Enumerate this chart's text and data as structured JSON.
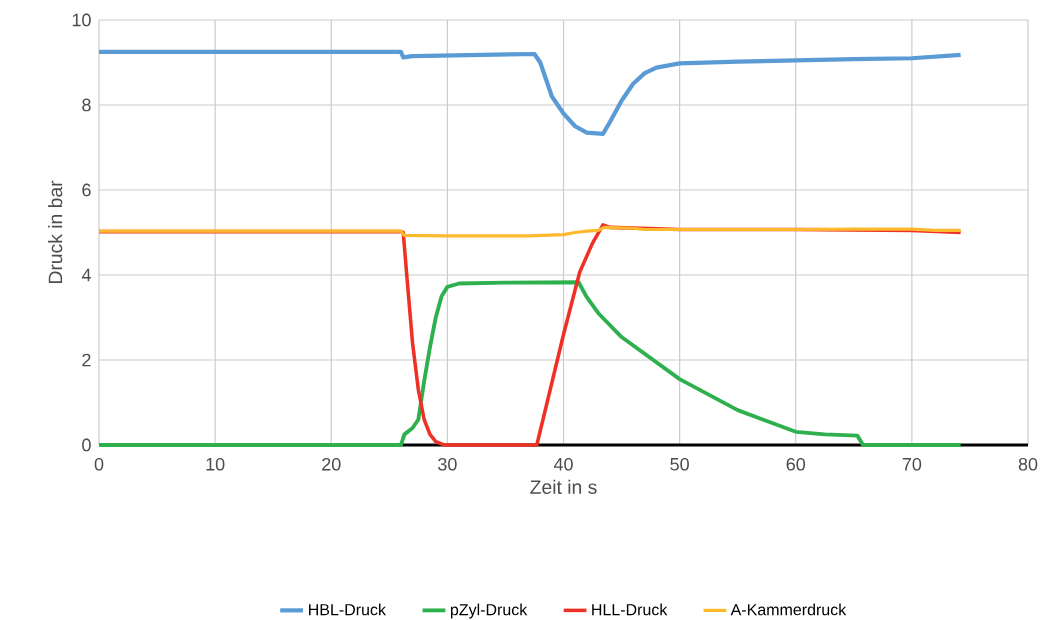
{
  "chart_data": {
    "type": "line",
    "xlabel": "Zeit in s",
    "ylabel": "Druck in bar",
    "xlim": [
      0,
      80
    ],
    "ylim": [
      0,
      10
    ],
    "xticks": [
      0,
      10,
      20,
      30,
      40,
      50,
      60,
      70,
      80
    ],
    "yticks": [
      0,
      2,
      4,
      6,
      8,
      10
    ],
    "grid": true,
    "legend": "bottom",
    "marker": "none",
    "line_style": "solid",
    "series": [
      {
        "name": "HBL-Druck",
        "color": "#5b9bd5",
        "x": [
          0,
          26,
          26.2,
          27,
          37.5,
          38,
          38.5,
          39,
          40,
          41,
          42,
          43.4,
          44,
          45,
          46,
          47,
          48,
          50,
          55,
          60,
          65,
          70,
          74.2
        ],
        "values": [
          9.25,
          9.25,
          9.12,
          9.15,
          9.2,
          9.0,
          8.6,
          8.2,
          7.8,
          7.5,
          7.35,
          7.32,
          7.6,
          8.1,
          8.5,
          8.75,
          8.88,
          8.98,
          9.02,
          9.05,
          9.08,
          9.1,
          9.18
        ]
      },
      {
        "name": "pZyl-Druck",
        "color": "#2eb04f",
        "x": [
          0,
          26,
          26.3,
          27,
          27.5,
          28,
          28.5,
          29,
          29.5,
          30,
          31,
          35,
          41.3,
          42,
          43,
          45,
          50,
          55,
          60,
          62.5,
          65.3,
          65.8,
          74.2
        ],
        "values": [
          0,
          0,
          0.25,
          0.4,
          0.6,
          1.5,
          2.3,
          3.0,
          3.5,
          3.72,
          3.8,
          3.82,
          3.83,
          3.48,
          3.1,
          2.54,
          1.55,
          0.82,
          0.31,
          0.25,
          0.22,
          0,
          0
        ]
      },
      {
        "name": "HLL-Druck",
        "color": "#ee3124",
        "x": [
          0,
          26,
          26.2,
          26.5,
          27,
          27.5,
          28,
          28.5,
          29,
          29.7,
          37.7,
          38.5,
          40,
          41.4,
          42.5,
          43.4,
          44,
          50,
          60,
          70,
          74.2
        ],
        "values": [
          5.02,
          5.02,
          5.0,
          4.0,
          2.4,
          1.3,
          0.6,
          0.25,
          0.08,
          0,
          0,
          0.9,
          2.6,
          4.07,
          4.75,
          5.18,
          5.12,
          5.07,
          5.07,
          5.05,
          5.0
        ]
      },
      {
        "name": "A-Kammerdruck",
        "color": "#fdb92d",
        "x": [
          0,
          26,
          26.3,
          30,
          37,
          40,
          41,
          42,
          43,
          43.5,
          46,
          47,
          60,
          65,
          70,
          72,
          74.2
        ],
        "values": [
          5.03,
          5.03,
          4.93,
          4.92,
          4.92,
          4.95,
          5.0,
          5.03,
          5.05,
          5.12,
          5.1,
          5.07,
          5.07,
          5.08,
          5.08,
          5.05,
          5.05
        ]
      }
    ]
  }
}
